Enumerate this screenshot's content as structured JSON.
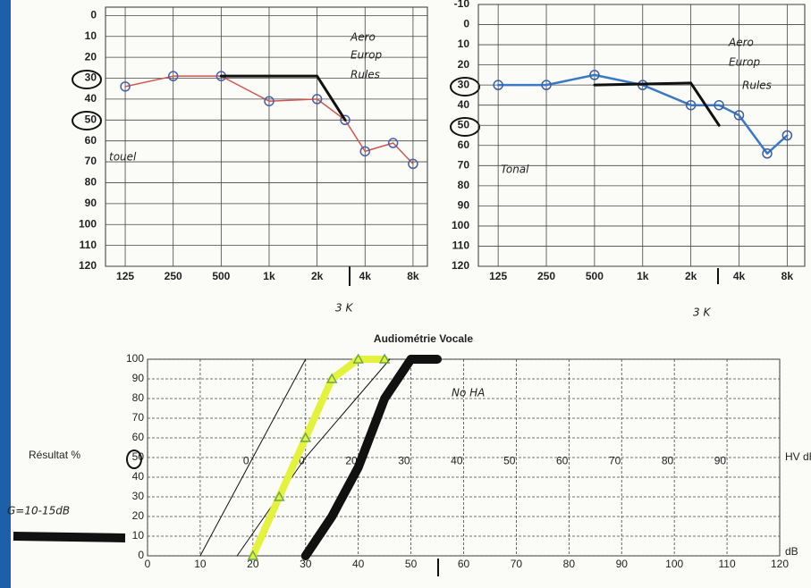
{
  "chart_data": [
    {
      "type": "line",
      "xscale": "log",
      "y_inverted": true,
      "grid": true,
      "xlim": [
        94,
        9850
      ],
      "ylim": [
        -4,
        120
      ],
      "xticks": [
        125,
        250,
        500,
        {
          "value": 1000,
          "label": "1k"
        },
        {
          "value": 2000,
          "label": "2k"
        },
        {
          "value": 4000,
          "label": "4k"
        },
        {
          "value": 8000,
          "label": "8k"
        }
      ],
      "yticks": [
        0,
        10,
        20,
        30,
        40,
        50,
        60,
        70,
        80,
        90,
        100,
        110,
        120
      ],
      "series": [
        {
          "color": "#d2564c",
          "marker": "circle",
          "marker_color": "#4a5fa8",
          "width": 1.5,
          "x": [
            125,
            250,
            500,
            1000,
            2000,
            3000,
            4000,
            6000,
            8000
          ],
          "values": [
            34,
            29,
            29,
            41,
            40,
            50,
            65,
            61,
            71
          ]
        },
        {
          "color": "#111111",
          "marker": "none",
          "width": 3,
          "x": [
            500,
            2000,
            3000
          ],
          "values": [
            29,
            29,
            50
          ]
        }
      ],
      "annotations": [
        "Aero",
        "Europ",
        "Rules",
        "touel",
        "3 K"
      ]
    },
    {
      "type": "line",
      "xscale": "log",
      "y_inverted": true,
      "grid": true,
      "xlim": [
        94,
        10300
      ],
      "ylim": [
        -10,
        120
      ],
      "xticks": [
        125,
        250,
        500,
        {
          "value": 1000,
          "label": "1k"
        },
        {
          "value": 2000,
          "label": "2k"
        },
        {
          "value": 4000,
          "label": "4k"
        },
        {
          "value": 8000,
          "label": "8k"
        }
      ],
      "yticks": [
        -10,
        0,
        10,
        20,
        30,
        40,
        50,
        60,
        70,
        80,
        90,
        100,
        110,
        120
      ],
      "series": [
        {
          "color": "#3a78c8",
          "marker": "circle",
          "marker_color": "#3a5fa0",
          "width": 2.5,
          "x": [
            125,
            250,
            500,
            1000,
            2000,
            3000,
            4000,
            6000,
            8000
          ],
          "values": [
            30,
            30,
            25,
            30,
            40,
            40,
            45,
            64,
            55
          ]
        },
        {
          "color": "#111111",
          "marker": "none",
          "width": 3,
          "x": [
            500,
            2000,
            3000
          ],
          "values": [
            30,
            29,
            50
          ]
        }
      ],
      "annotations": [
        "Aero",
        "Europ",
        "Rules",
        "Tonal",
        "3 K"
      ]
    },
    {
      "type": "line",
      "title": "Audiométrie Vocale",
      "ylabel": "Résultat %",
      "xlabel": "dB",
      "x2label": "HV dB",
      "grid": true,
      "xlim": [
        0,
        120
      ],
      "ylim": [
        0,
        100
      ],
      "x2lim": [
        -18.7,
        101.3
      ],
      "xticks": [
        0,
        10,
        20,
        30,
        40,
        50,
        60,
        70,
        80,
        90,
        100,
        110,
        120
      ],
      "yticks": [
        0,
        10,
        20,
        30,
        40,
        50,
        60,
        70,
        80,
        90,
        100
      ],
      "x2ticks": [
        0,
        10,
        20,
        30,
        40,
        50,
        60,
        70,
        80,
        90
      ],
      "series": [
        {
          "color": "#111111",
          "marker": "none",
          "width": 1,
          "x": [
            10,
            20,
            30
          ],
          "values": [
            0,
            50,
            100
          ]
        },
        {
          "color": "#111111",
          "marker": "none",
          "width": 1,
          "x": [
            17,
            30,
            46
          ],
          "values": [
            0,
            50,
            100
          ]
        },
        {
          "color": "#e4f23c",
          "marker": "triangle",
          "marker_color": "#6aa84f",
          "width": 8,
          "x": [
            20,
            25,
            30,
            35,
            40,
            45
          ],
          "values": [
            0,
            30,
            60,
            90,
            100,
            100
          ]
        },
        {
          "color": "#111111",
          "marker": "none",
          "width": 10,
          "x": [
            30,
            35,
            40,
            45,
            50,
            55
          ],
          "values": [
            0,
            20,
            45,
            80,
            100,
            100
          ]
        }
      ],
      "annotations": [
        "No HA",
        "G=10-15dB"
      ]
    }
  ]
}
